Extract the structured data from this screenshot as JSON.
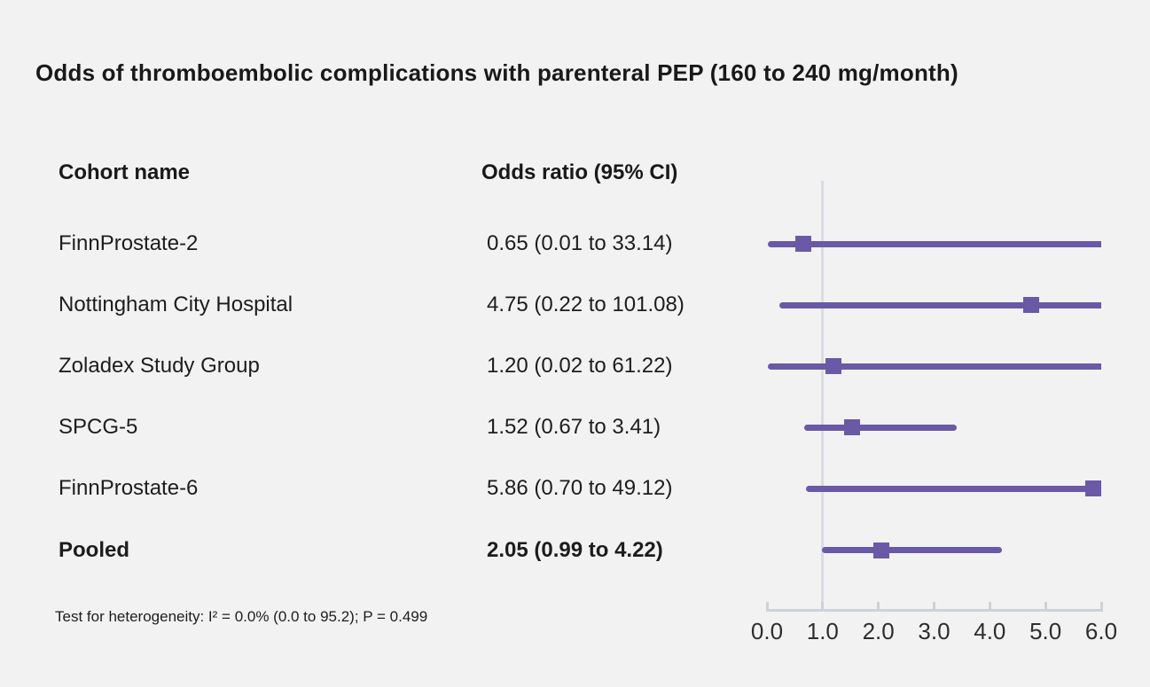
{
  "title": "Odds of thromboembolic complications with parenteral PEP (160 to 240 mg/month)",
  "columns": {
    "cohort": "Cohort name",
    "odds_ratio": "Odds ratio (95% CI)"
  },
  "footnote": "Test for heterogeneity: I² = 0.0% (0.0 to 95.2); P = 0.499",
  "colors": {
    "background": "#f2f2f2",
    "marker": "#6a59a6",
    "ci_line": "#6a59a6",
    "reference_line": "#d9dce2",
    "axis": "#ccd2d9",
    "text": "#1d1d1d"
  },
  "chart_data": {
    "type": "forest",
    "title": "Odds of thromboembolic complications with parenteral PEP (160 to 240 mg/month)",
    "xlabel": "",
    "xlim": [
      0.0,
      6.0
    ],
    "xticks": [
      0.0,
      1.0,
      2.0,
      3.0,
      4.0,
      5.0,
      6.0
    ],
    "xtick_labels": [
      "0.0",
      "1.0",
      "2.0",
      "3.0",
      "4.0",
      "5.0",
      "6.0"
    ],
    "reference_line": 1.0,
    "grid": false,
    "legend": false,
    "rows": [
      {
        "cohort": "FinnProstate-2",
        "or": 0.65,
        "ci_low": 0.01,
        "ci_high": 33.14,
        "label": "0.65 (0.01 to 33.14)",
        "bold": false
      },
      {
        "cohort": "Nottingham City Hospital",
        "or": 4.75,
        "ci_low": 0.22,
        "ci_high": 101.08,
        "label": "4.75 (0.22 to 101.08)",
        "bold": false
      },
      {
        "cohort": "Zoladex Study Group",
        "or": 1.2,
        "ci_low": 0.02,
        "ci_high": 61.22,
        "label": "1.20 (0.02 to 61.22)",
        "bold": false
      },
      {
        "cohort": "SPCG-5",
        "or": 1.52,
        "ci_low": 0.67,
        "ci_high": 3.41,
        "label": "1.52 (0.67 to 3.41)",
        "bold": false
      },
      {
        "cohort": "FinnProstate-6",
        "or": 5.86,
        "ci_low": 0.7,
        "ci_high": 49.12,
        "label": "5.86 (0.70 to 49.12)",
        "bold": false
      },
      {
        "cohort": "Pooled",
        "or": 2.05,
        "ci_low": 0.99,
        "ci_high": 4.22,
        "label": "2.05 (0.99 to 4.22)",
        "bold": true
      }
    ],
    "heterogeneity_note": "Test for heterogeneity: I² = 0.0% (0.0 to 95.2); P = 0.499"
  }
}
